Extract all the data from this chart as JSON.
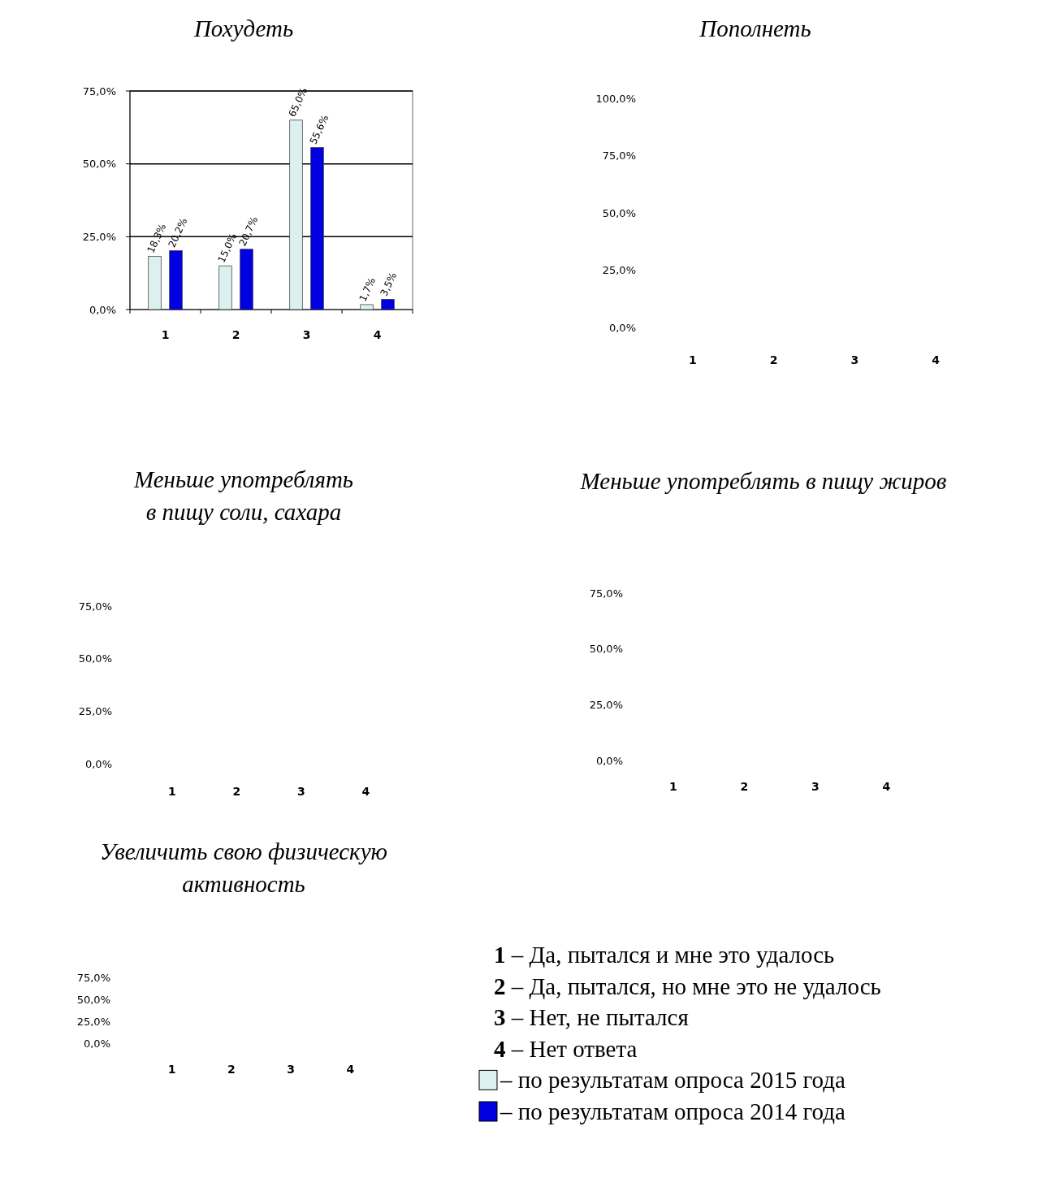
{
  "chart_data": [
    {
      "type": "bar",
      "title": "Похудеть",
      "categories": [
        "1",
        "2",
        "3",
        "4"
      ],
      "ylim": [
        0,
        75
      ],
      "yticks": [
        {
          "value": 0,
          "label": "0,0%"
        },
        {
          "value": 25,
          "label": "25,0%"
        },
        {
          "value": 50,
          "label": "50,0%"
        },
        {
          "value": 75,
          "label": "75,0%"
        }
      ],
      "grid": "y",
      "legend": "bottom right",
      "series": [
        {
          "name": "– по результатам опроса 2015 года",
          "color": "#dcf0f0",
          "values": [
            18.3,
            15.0,
            65.0,
            1.7
          ],
          "value_labels": [
            "18,3%",
            "15,0%",
            "65,0%",
            "1,7%"
          ]
        },
        {
          "name": "– по результатам опроса 2014 года",
          "color": "#0000e0",
          "values": [
            20.2,
            20.7,
            55.6,
            3.5
          ],
          "value_labels": [
            "20,2%",
            "20,7%",
            "55,6%",
            "3,5%"
          ]
        }
      ],
      "annotations": [
        "1 – Да, пытался и мне это удалось",
        "2 – Да, пытался, но мне это не удалось",
        "3 – Нет, не пытался",
        "4 – Нет ответа"
      ]
    },
    {
      "type": "bar",
      "title": "Пополнеть",
      "categories": [
        "1",
        "2",
        "3",
        "4"
      ],
      "values": [
        null,
        null,
        null,
        null
      ],
      "ylim": [
        0,
        100
      ],
      "yticks": [
        {
          "value": 0,
          "label": "0,0%"
        },
        {
          "value": 25,
          "label": "25,0%"
        },
        {
          "value": 50,
          "label": "50,0%"
        },
        {
          "value": 75,
          "label": "75,0%"
        },
        {
          "value": 100,
          "label": "100,0%"
        }
      ]
    },
    {
      "type": "bar",
      "title": "Меньше употреблять в пищу соли, сахара",
      "categories": [
        "1",
        "2",
        "3",
        "4"
      ],
      "values": [
        null,
        null,
        null,
        null
      ],
      "ylim": [
        0,
        75
      ],
      "yticks": [
        {
          "value": 0,
          "label": "0,0%"
        },
        {
          "value": 25,
          "label": "25,0%"
        },
        {
          "value": 50,
          "label": "50,0%"
        },
        {
          "value": 75,
          "label": "75,0%"
        }
      ]
    },
    {
      "type": "bar",
      "title": "Меньше употреблять в пищу жиров",
      "categories": [
        "1",
        "2",
        "3",
        "4"
      ],
      "values": [
        null,
        null,
        null,
        null
      ],
      "ylim": [
        0,
        75
      ],
      "yticks": [
        {
          "value": 0,
          "label": "0,0%"
        },
        {
          "value": 25,
          "label": "25,0%"
        },
        {
          "value": 50,
          "label": "50,0%"
        },
        {
          "value": 75,
          "label": "75,0%"
        }
      ]
    },
    {
      "type": "bar",
      "title": "Увеличить свою физическую активность",
      "categories": [
        "1",
        "2",
        "3",
        "4"
      ],
      "values": [
        null,
        null,
        null,
        null
      ],
      "ylim": [
        0,
        75
      ],
      "yticks": [
        {
          "value": 0,
          "label": "0,0%"
        },
        {
          "value": 25,
          "label": "25,0%"
        },
        {
          "value": 50,
          "label": "50,0%"
        },
        {
          "value": 75,
          "label": "75,0%"
        }
      ]
    }
  ]
}
